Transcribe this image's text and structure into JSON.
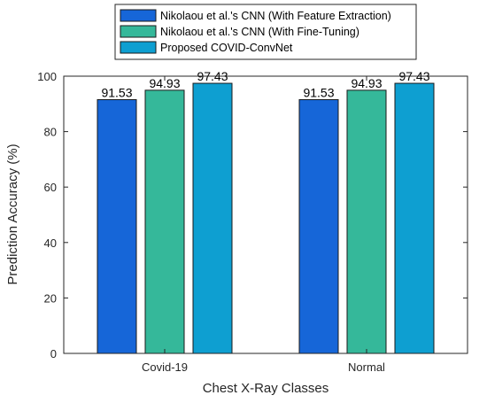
{
  "chart_data": {
    "type": "bar",
    "categories": [
      "Covid-19",
      "Normal"
    ],
    "series": [
      {
        "name": "Nikolaou et al.'s CNN (With Feature Extraction)",
        "values": [
          91.53,
          91.53
        ],
        "color": "#1666d8"
      },
      {
        "name": "Nikolaou et al.'s CNN (With Fine-Tuning)",
        "values": [
          94.93,
          94.93
        ],
        "color": "#35b89a"
      },
      {
        "name": "Proposed COVID-ConvNet",
        "values": [
          97.43,
          97.43
        ],
        "color": "#0e9fd1"
      }
    ],
    "data_labels": [
      "91.53",
      "94.93",
      "97.43",
      "91.53",
      "94.93",
      "97.43"
    ],
    "xlabel": "Chest X-Ray Classes",
    "ylabel": "Prediction Accuracy (%)",
    "ylim": [
      0,
      100
    ],
    "yticks": [
      0,
      20,
      40,
      60,
      80,
      100
    ],
    "legend_position": "top-center",
    "grid": false
  }
}
